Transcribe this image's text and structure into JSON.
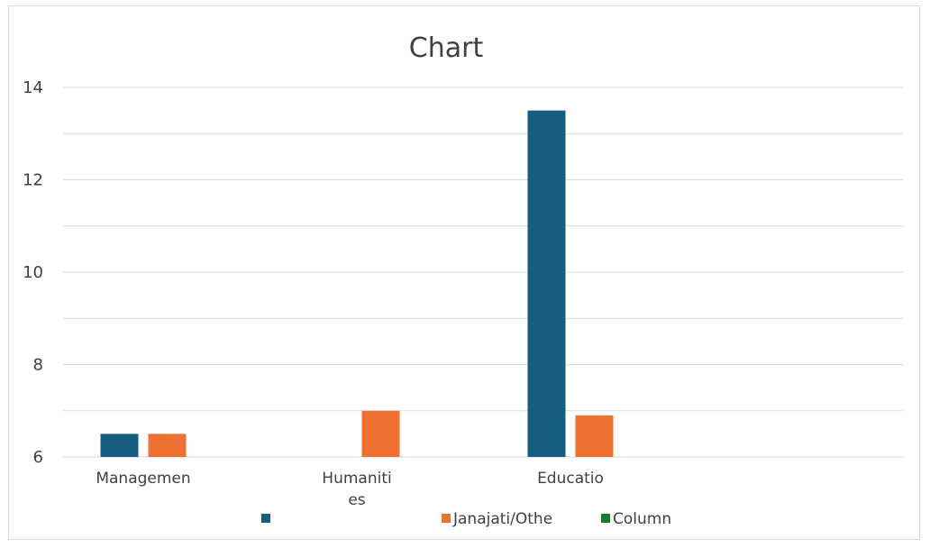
{
  "chart_data": {
    "type": "bar",
    "title": "Chart",
    "categories": [
      "Managemen",
      "Humaniti es",
      "Educatio"
    ],
    "category_lines": [
      [
        "Managemen"
      ],
      [
        "Humaniti",
        "es"
      ],
      [
        "Educatio"
      ]
    ],
    "series": [
      {
        "values": [
          6.5,
          null,
          13.5
        ],
        "color": "#155E80"
      },
      {
        "name": "Janajati/Othe",
        "values": [
          6.5,
          7.0,
          6.9
        ],
        "color": "#ED7232"
      },
      {
        "name": "Column",
        "values": [
          null,
          null,
          null
        ],
        "color": "#1E7A2F"
      }
    ],
    "ylim": [
      6,
      14
    ],
    "yticks": [
      6,
      8,
      10,
      12,
      14
    ],
    "grid": true,
    "legend": "bottom"
  }
}
